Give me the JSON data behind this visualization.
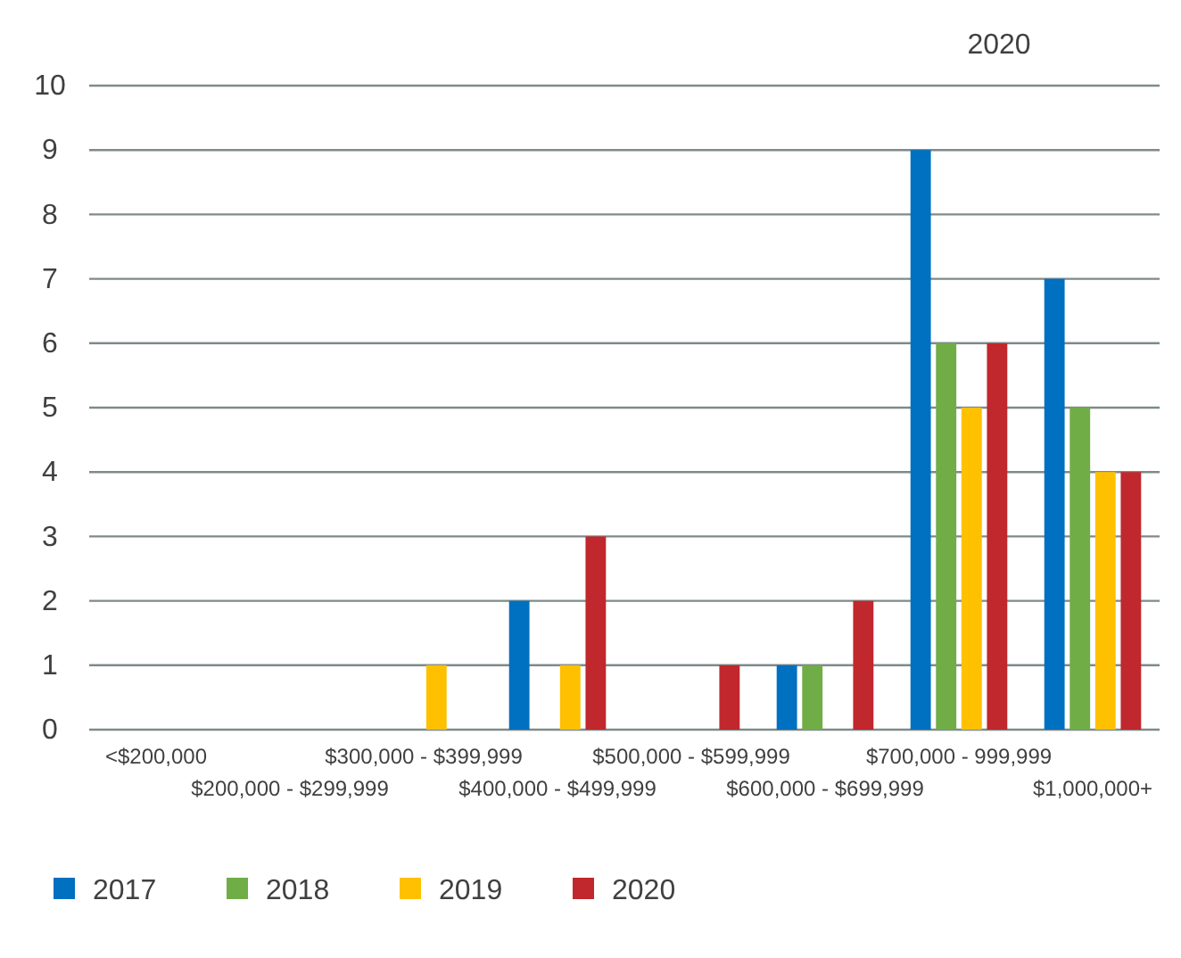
{
  "chart_data": {
    "type": "bar",
    "title": "2020",
    "categories": [
      "<$200,000",
      "$200,000 - $299,999",
      "$300,000 - $399,999",
      "$400,000 - $499,999",
      "$500,000 - $599,999",
      "$600,000 - $699,999",
      "$700,000 - 999,999",
      "$1,000,000+"
    ],
    "series": [
      {
        "name": "2017",
        "color": "#0070c0",
        "values": [
          0,
          0,
          0,
          2,
          0,
          1,
          9,
          7
        ]
      },
      {
        "name": "2018",
        "color": "#70ad47",
        "values": [
          0,
          0,
          0,
          0,
          0,
          1,
          6,
          5
        ]
      },
      {
        "name": "2019",
        "color": "#ffc000",
        "values": [
          0,
          0,
          1,
          1,
          0,
          0,
          5,
          4
        ]
      },
      {
        "name": "2020",
        "color": "#c0282d",
        "values": [
          0,
          0,
          0,
          3,
          1,
          2,
          6,
          4
        ]
      }
    ],
    "ylim": [
      0,
      10
    ],
    "yticks": [
      0,
      1,
      2,
      3,
      4,
      5,
      6,
      7,
      8,
      9,
      10
    ],
    "grid": "y",
    "legend": "bottom"
  }
}
